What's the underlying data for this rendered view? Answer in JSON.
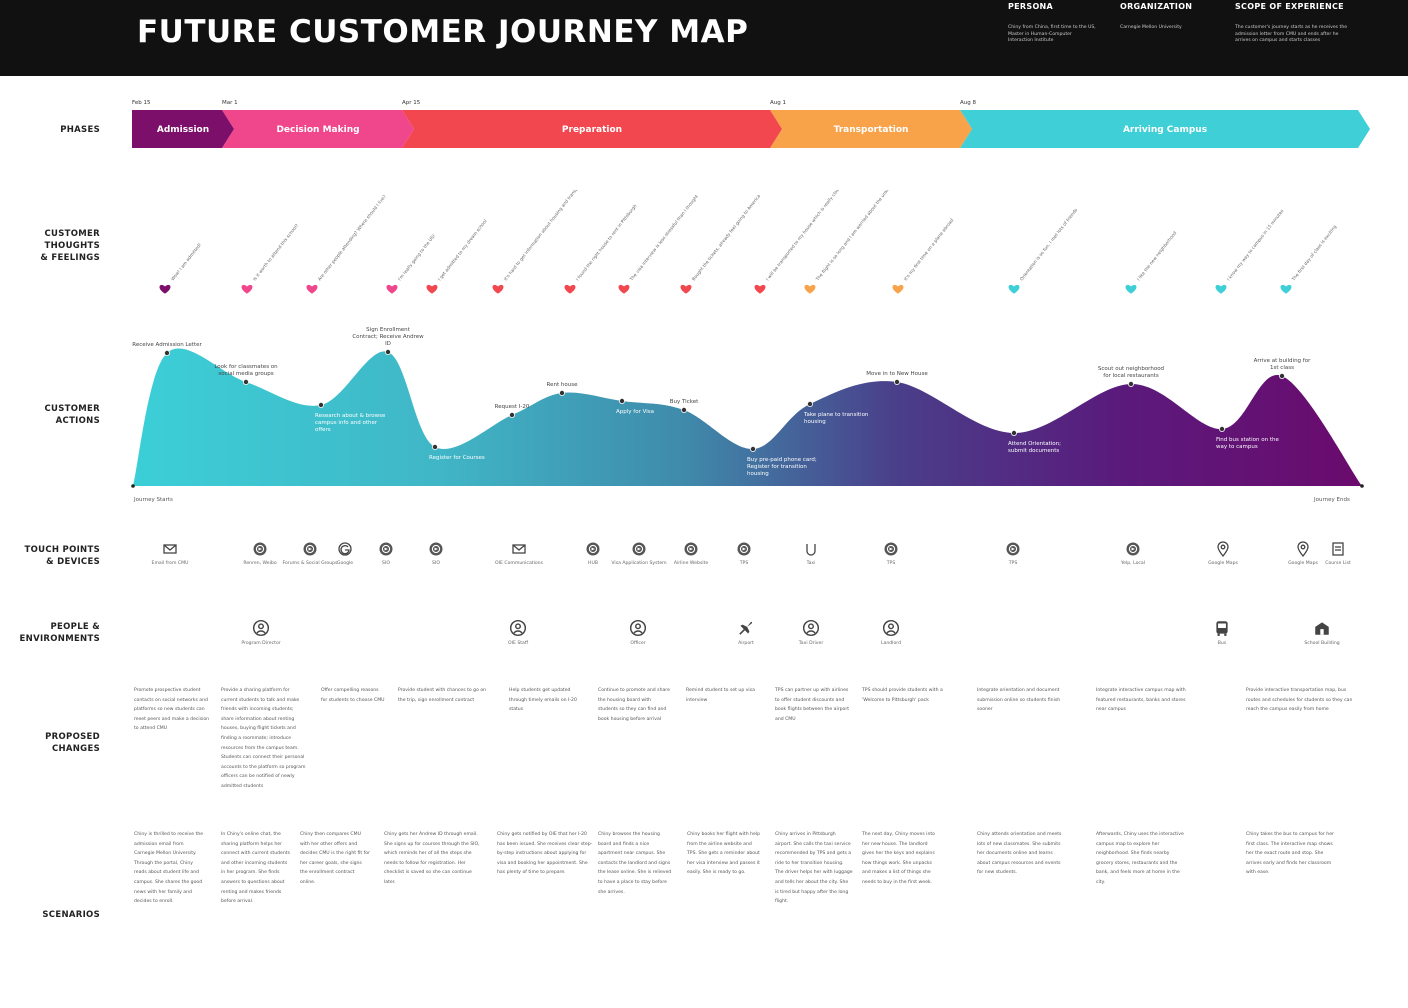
{
  "header": {
    "title": "FUTURE CUSTOMER JOURNEY MAP",
    "persona_label": "PERSONA",
    "persona_text": "Chiny from China, first time to the US, Master in Human-Computer Interaction Institute",
    "organization_label": "ORGANIZATION",
    "organization_text": "Carnegie Mellon University",
    "scope_label": "SCOPE OF EXPERIENCE",
    "scope_text": "The customer's journey starts as he receives the admission letter from CMU and ends after he arrives on campus and starts classes"
  },
  "row_labels": {
    "phases": "PHASES",
    "feelings": "CUSTOMER\nTHOUGHTS\n& FEELINGS",
    "actions": "CUSTOMER\nACTIONS",
    "touchpoints": "TOUCH POINTS\n& DEVICES",
    "people": "PEOPLE &\nENVIRONMENTS",
    "changes": "PROPOSED\nCHANGES",
    "scenarios": "SCENARIOS"
  },
  "phases": [
    {
      "name": "Admission",
      "date": "Feb 15",
      "color": "#7b0f6a"
    },
    {
      "name": "Decision Making",
      "date": "Mar 1",
      "color": "#f0468c"
    },
    {
      "name": "Preparation",
      "date": "Apr 15",
      "color": "#f2474f"
    },
    {
      "name": "Transportation",
      "date": "Aug 1",
      "color": "#f8a24a"
    },
    {
      "name": "Arriving Campus",
      "date": "Aug 8",
      "color": "#3fcfd6"
    }
  ],
  "feelings": [
    {
      "text": "Wow! I am admitted!",
      "color": "#7b0f6a"
    },
    {
      "text": "Is it worth to attend this school?",
      "color": "#f0468c"
    },
    {
      "text": "Are other people attending? Where should I live?",
      "color": "#f0468c"
    },
    {
      "text": "I'm really going to the US!",
      "color": "#f0468c"
    },
    {
      "text": "I get admitted to my dream school",
      "color": "#f2474f"
    },
    {
      "text": "It's hard to get information about housing and transportation",
      "color": "#f2474f"
    },
    {
      "text": "I found the right house to rent in Pittsburgh",
      "color": "#f2474f"
    },
    {
      "text": "The visa interview is less stressful than I thought",
      "color": "#f2474f"
    },
    {
      "text": "Bought the tickets, already feel going to America",
      "color": "#f2474f"
    },
    {
      "text": "I will be transported to my house which is really close to campus",
      "color": "#f2474f"
    },
    {
      "text": "The flight is so long and I am worried about the unknown ahead",
      "color": "#f8a24a"
    },
    {
      "text": "It's my first time on a plane abroad",
      "color": "#f8a24a"
    },
    {
      "text": "Orientation is so fun, I met lots of friends",
      "color": "#3fcfd6"
    },
    {
      "text": "I like the new neighborhood",
      "color": "#3fcfd6"
    },
    {
      "text": "I know my way to campus in 15 minutes",
      "color": "#3fcfd6"
    },
    {
      "text": "The first day of class is exciting",
      "color": "#3fcfd6"
    }
  ],
  "actions": [
    {
      "label": "Receive Admission Letter",
      "pos": "above"
    },
    {
      "label": "Look for classmates on social media groups",
      "pos": "above"
    },
    {
      "label": "Research about & browse campus info and other offers",
      "pos": "below"
    },
    {
      "label": "Sign Enrollment Contract; Receive Andrew ID",
      "pos": "above"
    },
    {
      "label": "Register for Courses",
      "pos": "below"
    },
    {
      "label": "Request I-20",
      "pos": "above"
    },
    {
      "label": "Rent house",
      "pos": "above"
    },
    {
      "label": "Apply for Visa",
      "pos": "below"
    },
    {
      "label": "Buy Ticket",
      "pos": "above"
    },
    {
      "label": "Buy pre-paid phone card; Register for transition housing",
      "pos": "below"
    },
    {
      "label": "Take plane to transition housing",
      "pos": "below"
    },
    {
      "label": "Move in to New House",
      "pos": "above"
    },
    {
      "label": "Attend Orientation; submit documents",
      "pos": "below"
    },
    {
      "label": "Scout out neighborhood for local restaurants",
      "pos": "above"
    },
    {
      "label": "Find bus station on the way to campus",
      "pos": "below"
    },
    {
      "label": "Arrive at building for 1st class",
      "pos": "above"
    }
  ],
  "actions_meta": {
    "start": "Journey Starts",
    "end": "Journey Ends"
  },
  "touchpoints": [
    {
      "icon": "email-icon",
      "label": "Email from CMU"
    },
    {
      "icon": "web-icon",
      "label": "Renren, Weibo"
    },
    {
      "icon": "web-icon",
      "label": "Forums & Social Groups"
    },
    {
      "icon": "google-icon",
      "label": "Google"
    },
    {
      "icon": "web-icon",
      "label": "SIO"
    },
    {
      "icon": "web-icon",
      "label": "SIO"
    },
    {
      "icon": "email-icon",
      "label": "OIE Communications"
    },
    {
      "icon": "web-icon",
      "label": "HUB"
    },
    {
      "icon": "web-icon",
      "label": "Visa Application System"
    },
    {
      "icon": "web-icon",
      "label": "Airline Website"
    },
    {
      "icon": "web-icon",
      "label": "TPS"
    },
    {
      "icon": "phone-icon",
      "label": "Taxi"
    },
    {
      "icon": "web-icon",
      "label": "TPS"
    },
    {
      "icon": "web-icon",
      "label": "TPS"
    },
    {
      "icon": "web-icon",
      "label": "Yelp, Local"
    },
    {
      "icon": "map-pin-icon",
      "label": "Google Maps"
    },
    {
      "icon": "map-pin-icon",
      "label": "Google Maps"
    },
    {
      "icon": "document-icon",
      "label": "Course List"
    }
  ],
  "people": [
    {
      "icon": "person-icon",
      "label": "Program Director"
    },
    {
      "icon": "person-icon",
      "label": "OIE Staff"
    },
    {
      "icon": "person-icon",
      "label": "Officer"
    },
    {
      "icon": "airplane-icon",
      "label": "Airport"
    },
    {
      "icon": "person-icon",
      "label": "Taxi Driver"
    },
    {
      "icon": "person-icon",
      "label": "Landlord"
    },
    {
      "icon": "bus-icon",
      "label": "Bus"
    },
    {
      "icon": "building-icon",
      "label": "School Building"
    }
  ],
  "proposed_changes": [
    "Promote prospective student contacts on social networks and platforms so new students can meet peers and make a decision to attend CMU",
    "Provide a sharing platform for current students to talk and make friends with incoming students; share information about renting houses, buying flight tickets and finding a roommate; introduce resources from the campus team. Students can connect their personal accounts to the platform so program officers can be notified of newly admitted students",
    "Offer compelling reasons for students to choose CMU",
    "Provide student with chances to go on the trip, sign enrollment contract",
    "Help students get updated through timely emails on I-20 status",
    "Continue to promote and share the housing board with students so they can find and book housing before arrival",
    "Remind student to set up visa interview",
    "TPS can partner up with airlines to offer student discounts and book flights between the airport and CMU",
    "TPS should provide students with a 'Welcome to Pittsburgh' pack",
    "Integrate orientation and document submission online so students finish sooner",
    "Integrate interactive campus map with featured restaurants, banks and stores near campus",
    "Provide interactive transportation map, bus routes and schedules for students so they can reach the campus easily from home"
  ],
  "scenarios": [
    "Chiny is thrilled to receive the admission email from Carnegie Mellon University. Through the portal, Chiny reads about student life and campus. She shares the good news with her family and decides to enroll.",
    "In Chiny's online chat, the sharing platform helps her connect with current students and other incoming students in her program. She finds answers to questions about renting and makes friends before arrival.",
    "Chiny then compares CMU with her other offers and decides CMU is the right fit for her career goals, she signs the enrollment contract online.",
    "Chiny gets her Andrew ID through email. She signs up for courses through the SIO, which reminds her of all the steps she needs to follow for registration. Her checklist is saved so she can continue later.",
    "Chiny gets notified by OIE that her I-20 has been issued. She receives clear step-by-step instructions about applying for visa and booking her appointment. She has plenty of time to prepare.",
    "Chiny browses the housing board and finds a nice apartment near campus. She contacts the landlord and signs the lease online. She is relieved to have a place to stay before she arrives.",
    "Chiny books her flight with help from the airline website and TPS. She gets a reminder about her visa interview and passes it easily. She is ready to go.",
    "Chiny arrives in Pittsburgh airport. She calls the taxi service recommended by TPS and gets a ride to her transition housing. The driver helps her with luggage and tells her about the city. She is tired but happy after the long flight.",
    "The next day, Chiny moves into her new house. The landlord gives her the keys and explains how things work. She unpacks and makes a list of things she needs to buy in the first week.",
    "Chiny attends orientation and meets lots of new classmates. She submits her documents online and learns about campus resources and events for new students.",
    "Afterwards, Chiny uses the interactive campus map to explore her neighborhood. She finds nearby grocery stores, restaurants and the bank, and feels more at home in the city.",
    "Chiny takes the bus to campus for her first class. The interactive map shows her the exact route and stop. She arrives early and finds her classroom with ease."
  ]
}
